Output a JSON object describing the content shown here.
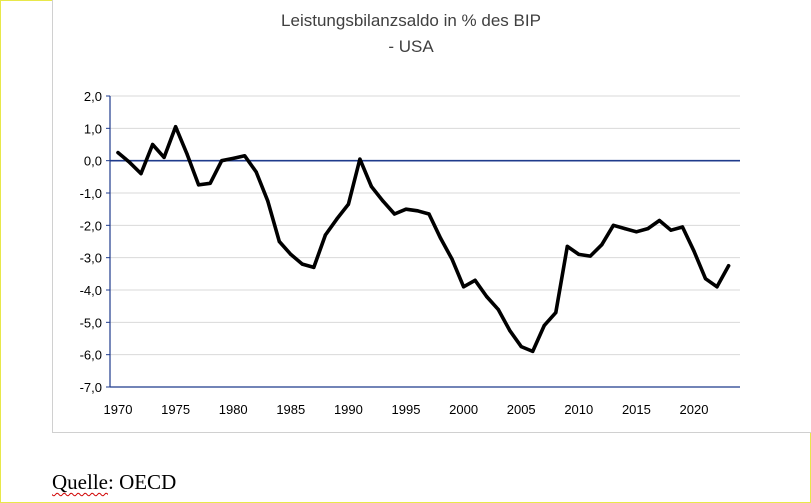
{
  "chart_data": {
    "type": "line",
    "title": "Leistungsbilanzsaldo in % des BIP",
    "subtitle": "- USA",
    "xlabel": "",
    "ylabel": "",
    "ylim": [
      -7.0,
      2.0
    ],
    "xlim": [
      1970,
      2023
    ],
    "y_ticks": [
      "2,0",
      "1,0",
      "0,0",
      "-1,0",
      "-2,0",
      "-3,0",
      "-4,0",
      "-5,0",
      "-6,0",
      "-7,0"
    ],
    "y_tick_values": [
      2,
      1,
      0,
      -1,
      -2,
      -3,
      -4,
      -5,
      -6,
      -7
    ],
    "x_ticks": [
      "1970",
      "1975",
      "1980",
      "1985",
      "1990",
      "1995",
      "2000",
      "2005",
      "2010",
      "2015",
      "2020"
    ],
    "x_tick_values": [
      1970,
      1975,
      1980,
      1985,
      1990,
      1995,
      2000,
      2005,
      2010,
      2015,
      2020
    ],
    "grid": true,
    "zero_line": true,
    "colors": {
      "line": "#000000",
      "zero_line": "#1f3b8c",
      "grid": "#d9d9d9",
      "axis": "#1f3b8c"
    },
    "series": [
      {
        "x": [
          1970,
          1971,
          1972,
          1973,
          1974,
          1975,
          1976,
          1977,
          1978,
          1979,
          1980,
          1981,
          1982,
          1983,
          1984,
          1985,
          1986,
          1987,
          1988,
          1989,
          1990,
          1991,
          1992,
          1993,
          1994,
          1995,
          1996,
          1997,
          1998,
          1999,
          2000,
          2001,
          2002,
          2003,
          2004,
          2005,
          2006,
          2007,
          2008,
          2009,
          2010,
          2011,
          2012,
          2013,
          2014,
          2015,
          2016,
          2017,
          2018,
          2019,
          2020,
          2021,
          2022,
          2023
        ],
        "values": [
          0.25,
          -0.05,
          -0.4,
          0.5,
          0.1,
          1.05,
          0.2,
          -0.75,
          -0.7,
          0.0,
          0.07,
          0.15,
          -0.35,
          -1.25,
          -2.5,
          -2.9,
          -3.2,
          -3.3,
          -2.3,
          -1.8,
          -1.35,
          0.05,
          -0.8,
          -1.25,
          -1.65,
          -1.5,
          -1.55,
          -1.65,
          -2.4,
          -3.05,
          -3.9,
          -3.7,
          -4.2,
          -4.6,
          -5.25,
          -5.75,
          -5.9,
          -5.1,
          -4.7,
          -2.65,
          -2.9,
          -2.95,
          -2.6,
          -2.0,
          -2.1,
          -2.2,
          -2.1,
          -1.85,
          -2.15,
          -2.05,
          -2.8,
          -3.65,
          -3.9,
          -3.25
        ]
      }
    ]
  },
  "source": {
    "prefix": "Quelle",
    "rest": ": OECD"
  }
}
